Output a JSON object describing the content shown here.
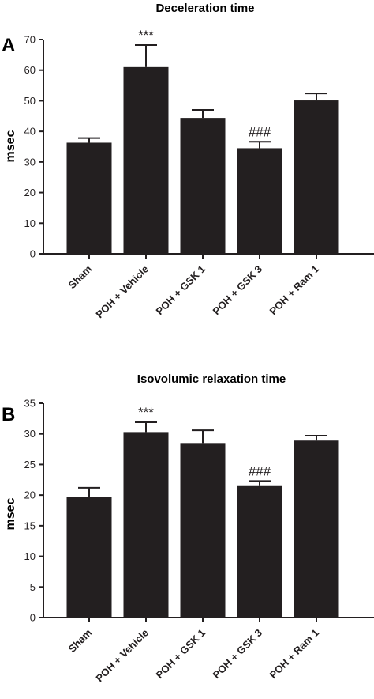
{
  "chart_data": [
    {
      "type": "bar",
      "panel_label": "A",
      "title": "Deceleration time",
      "ylabel": "msec",
      "xlabel": "",
      "ylim": [
        0,
        70
      ],
      "yticks": [
        "0",
        "10",
        "20",
        "30",
        "40",
        "50",
        "60",
        "70"
      ],
      "categories": [
        "Sham",
        "POH + Vehicle",
        "POH + GSK 1",
        "POH + GSK 3",
        "POH + Ram 1"
      ],
      "values": [
        36.3,
        61,
        44.4,
        34.5,
        50.1
      ],
      "error_upper": [
        37.8,
        68.2,
        47,
        36.6,
        52.4
      ],
      "annotations": [
        "",
        "***",
        "",
        "###",
        ""
      ],
      "bar_color": "#231f20",
      "grid": false
    },
    {
      "type": "bar",
      "panel_label": "B",
      "title": "Isovolumic relaxation time",
      "ylabel": "msec",
      "xlabel": "",
      "ylim": [
        0,
        35
      ],
      "yticks": [
        "0",
        "5",
        "10",
        "15",
        "20",
        "25",
        "30",
        "35"
      ],
      "categories": [
        "Sham",
        "POH + Vehicle",
        "POH + GSK 1",
        "POH + GSK 3",
        "POH + Ram 1"
      ],
      "values": [
        19.7,
        30.3,
        28.5,
        21.6,
        28.9
      ],
      "error_upper": [
        21.2,
        31.9,
        30.6,
        22.3,
        29.7
      ],
      "annotations": [
        "",
        "***",
        "",
        "###",
        ""
      ],
      "bar_color": "#231f20",
      "grid": false
    }
  ]
}
